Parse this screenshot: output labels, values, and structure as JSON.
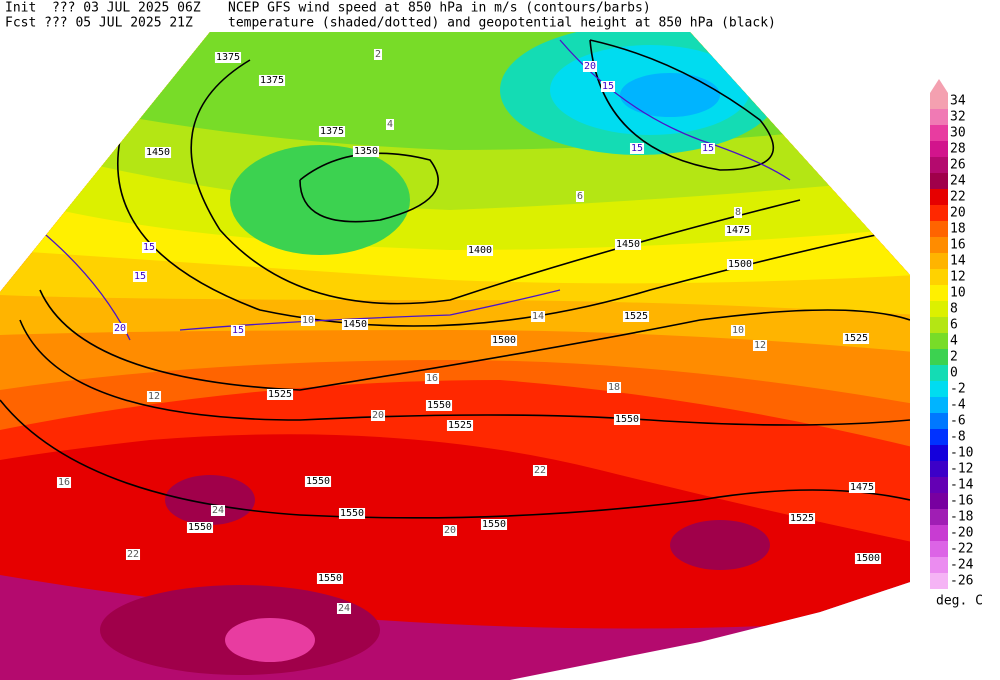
{
  "header": {
    "init": "Init  ??? 03 JUL 2025 06Z",
    "fcst": "Fcst ??? 05 JUL 2025 21Z",
    "title1": "NCEP GFS wind speed at 850 hPa in m/s (contours/barbs)",
    "title2": "temperature (shaded/dotted) and geopotential height at 850 hPa (black)"
  },
  "legend": {
    "unit": "deg. C",
    "items": [
      {
        "value": 34,
        "color": "#f4a0b0"
      },
      {
        "value": 32,
        "color": "#f07ab4"
      },
      {
        "value": 30,
        "color": "#e83ca0"
      },
      {
        "value": 28,
        "color": "#d2148c"
      },
      {
        "value": 26,
        "color": "#b40a6e"
      },
      {
        "value": 24,
        "color": "#a0004a"
      },
      {
        "value": 22,
        "color": "#e60000"
      },
      {
        "value": 20,
        "color": "#ff2800"
      },
      {
        "value": 18,
        "color": "#ff6400"
      },
      {
        "value": 16,
        "color": "#ff8c00"
      },
      {
        "value": 14,
        "color": "#ffb400"
      },
      {
        "value": 12,
        "color": "#ffd200"
      },
      {
        "value": 10,
        "color": "#fff000"
      },
      {
        "value": 8,
        "color": "#dcf000"
      },
      {
        "value": 6,
        "color": "#b4e614"
      },
      {
        "value": 4,
        "color": "#78dc28"
      },
      {
        "value": 2,
        "color": "#3cd250"
      },
      {
        "value": 0,
        "color": "#14dcb4"
      },
      {
        "value": -2,
        "color": "#00dcf0"
      },
      {
        "value": -4,
        "color": "#00b4ff"
      },
      {
        "value": -6,
        "color": "#0078ff"
      },
      {
        "value": -8,
        "color": "#0032ff"
      },
      {
        "value": -10,
        "color": "#1400dc"
      },
      {
        "value": -12,
        "color": "#3c00c8"
      },
      {
        "value": -14,
        "color": "#6400b4"
      },
      {
        "value": -16,
        "color": "#7800a0"
      },
      {
        "value": -18,
        "color": "#a01eb4"
      },
      {
        "value": -20,
        "color": "#c83cd2"
      },
      {
        "value": -22,
        "color": "#dc64e6"
      },
      {
        "value": -24,
        "color": "#eb8cf0"
      },
      {
        "value": -26,
        "color": "#f5b4f5"
      }
    ]
  },
  "contour_labels": [
    "1375",
    "1375",
    "1350",
    "1450",
    "1375",
    "1400",
    "1450",
    "1475",
    "1500",
    "1525",
    "1525",
    "1500",
    "1450",
    "1525",
    "1550",
    "1525",
    "1550",
    "1550",
    "1550",
    "1550",
    "1550",
    "1550",
    "1525",
    "1475",
    "1500",
    "20",
    "15",
    "15",
    "15",
    "15",
    "20",
    "15",
    "15",
    "10",
    "12",
    "14",
    "16",
    "18",
    "20",
    "22",
    "24",
    "24",
    "22",
    "20",
    "16",
    "12",
    "10",
    "8",
    "6",
    "4",
    "2"
  ]
}
